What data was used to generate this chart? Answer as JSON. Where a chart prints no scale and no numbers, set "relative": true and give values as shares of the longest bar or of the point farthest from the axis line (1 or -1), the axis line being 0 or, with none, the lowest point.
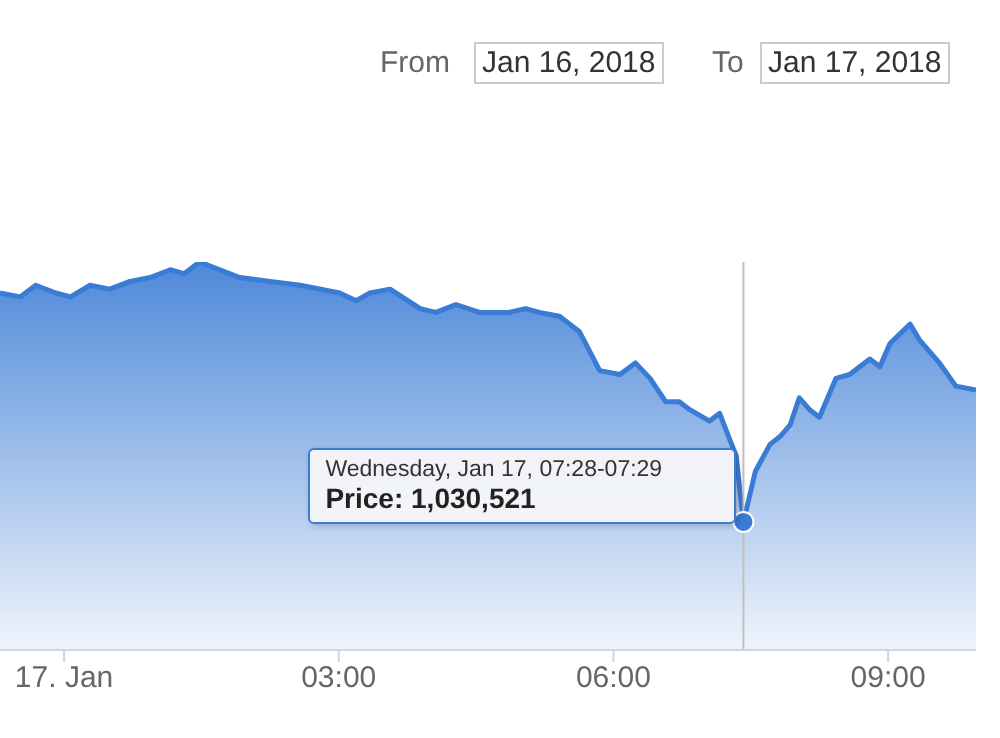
{
  "chart_data": {
    "type": "area",
    "relative": true,
    "color": "#3a7bd5",
    "x": [
      -0.7,
      -0.48,
      -0.31,
      -0.09,
      0.07,
      0.28,
      0.5,
      0.72,
      0.94,
      1.16,
      1.31,
      1.48,
      1.7,
      1.92,
      2.25,
      2.58,
      3.01,
      3.19,
      3.34,
      3.56,
      3.89,
      4.06,
      4.28,
      4.54,
      4.86,
      5.04,
      5.19,
      5.41,
      5.63,
      5.85,
      6.07,
      6.24,
      6.4,
      6.57,
      6.72,
      6.83,
      7.05,
      7.16,
      7.34,
      7.42,
      7.55,
      7.71,
      7.82,
      7.93,
      8.03,
      8.14,
      8.25,
      8.43,
      8.58,
      8.8,
      8.91,
      9.02,
      9.24,
      9.34,
      9.56,
      9.74,
      9.96
    ],
    "values": [
      0.92,
      0.91,
      0.94,
      0.92,
      0.91,
      0.94,
      0.93,
      0.95,
      0.96,
      0.98,
      0.97,
      1,
      0.98,
      0.96,
      0.95,
      0.94,
      0.92,
      0.9,
      0.92,
      0.93,
      0.88,
      0.87,
      0.89,
      0.87,
      0.87,
      0.88,
      0.87,
      0.86,
      0.82,
      0.72,
      0.71,
      0.74,
      0.7,
      0.64,
      0.64,
      0.62,
      0.59,
      0.61,
      0.5,
      0.33,
      0.46,
      0.53,
      0.55,
      0.58,
      0.65,
      0.62,
      0.6,
      0.7,
      0.71,
      0.75,
      0.73,
      0.79,
      0.84,
      0.8,
      0.74,
      0.68,
      0.67
    ],
    "xlim": [
      -0.7,
      9.96
    ],
    "xticks": [
      {
        "value": 0,
        "label": "17. Jan"
      },
      {
        "value": 3,
        "label": "03:00"
      },
      {
        "value": 6,
        "label": "06:00"
      },
      {
        "value": 9,
        "label": "09:00"
      }
    ],
    "ref_lines": [
      {
        "axis": "x",
        "value": 7.42,
        "color": "#c0c0c0"
      }
    ],
    "annotations": [
      "From",
      "Jan 16, 2018",
      "To",
      "Jan 17, 2018",
      "Wednesday, Jan 17, 07:28-07:29",
      "Price: 1,030,521"
    ]
  }
}
